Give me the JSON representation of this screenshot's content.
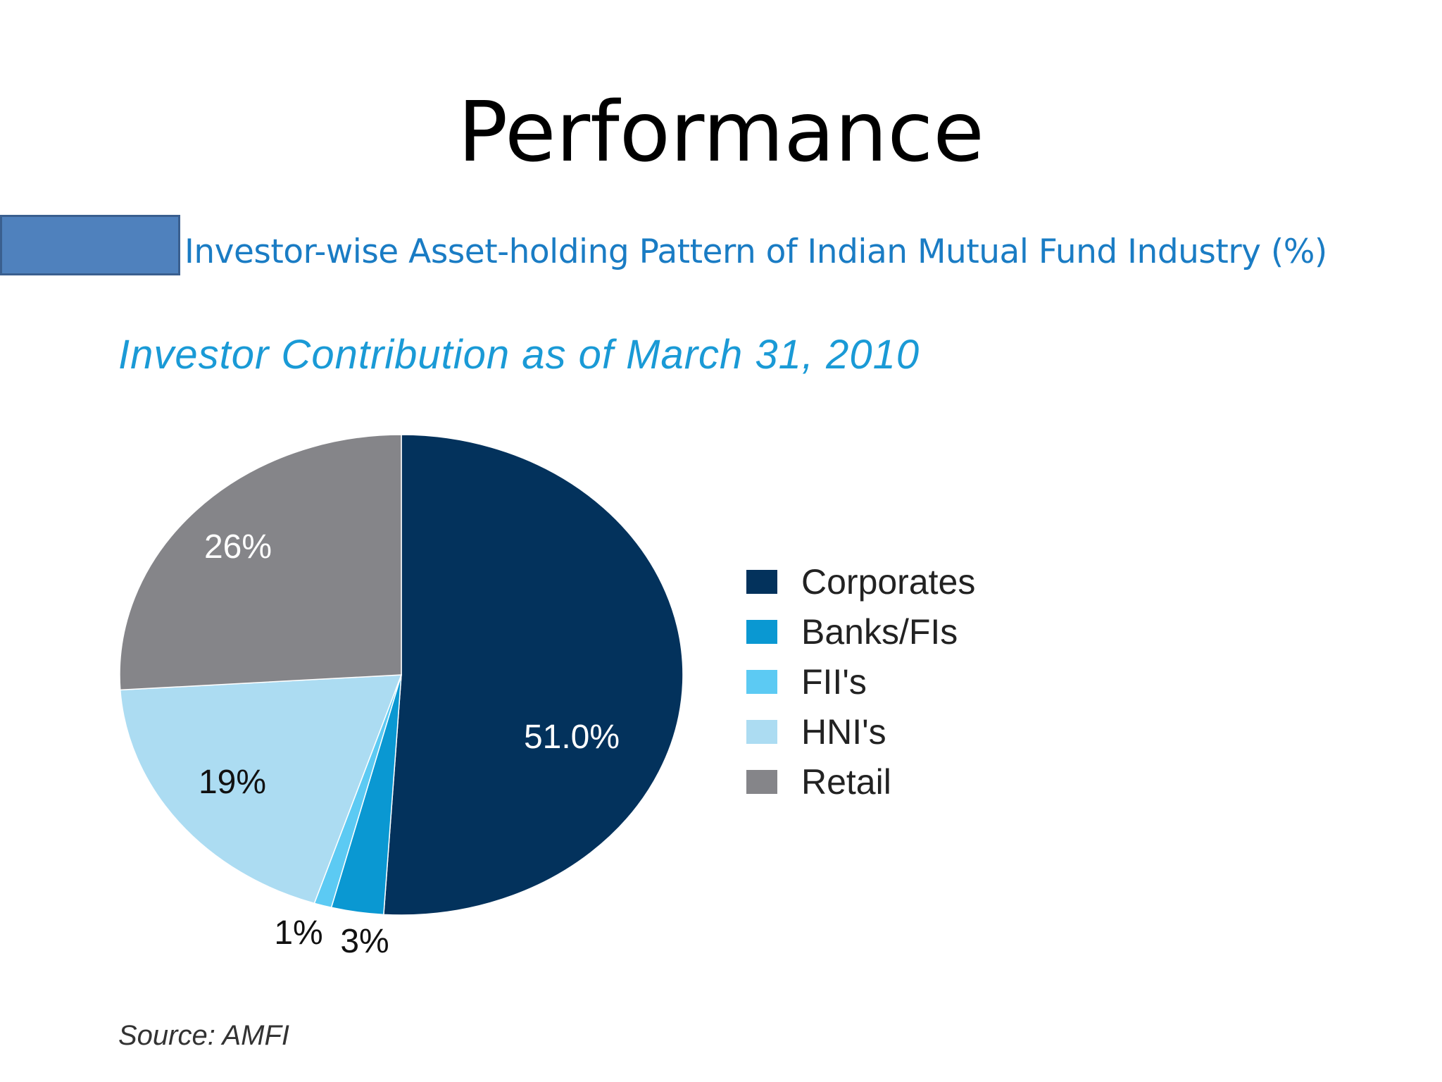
{
  "slide": {
    "title": "Performance",
    "subtitle": "Investor-wise Asset-holding Pattern of Indian Mutual Fund Industry (%)",
    "source": "Source: AMFI"
  },
  "chart_data": {
    "type": "pie",
    "title": "Investor Contribution as of March 31, 2010",
    "legend_position": "right",
    "slices": [
      {
        "name": "Corporates",
        "value": 51.0,
        "label": "51.0%",
        "color": "#03325c"
      },
      {
        "name": "Banks/FIs",
        "value": 3,
        "label": "3%",
        "color": "#0a98d2"
      },
      {
        "name": "FII's",
        "value": 1,
        "label": "1%",
        "color": "#5ccaf3"
      },
      {
        "name": "HNI's",
        "value": 19,
        "label": "19%",
        "color": "#acdcf2"
      },
      {
        "name": "Retail",
        "value": 26,
        "label": "26%",
        "color": "#858589"
      }
    ]
  }
}
